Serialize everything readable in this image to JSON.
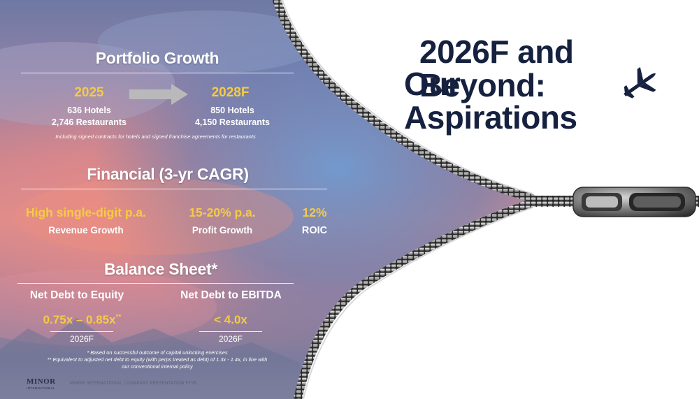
{
  "title": {
    "line1": "2026F and Beyond:",
    "line2": "Our Aspirations",
    "icon": "airplane-icon"
  },
  "portfolio": {
    "heading": "Portfolio Growth",
    "from_year": "2025",
    "from_hotels": "636 Hotels",
    "from_restaurants": "2,746 Restaurants",
    "to_year": "2028F",
    "to_hotels": "850 Hotels",
    "to_restaurants": "4,150 Restaurants",
    "note": "Including signed contracts for hotels and signed franchise agreements for restaurants"
  },
  "financial": {
    "heading": "Financial (3-yr CAGR)",
    "metrics": [
      {
        "value": "High single-digit p.a.",
        "label": "Revenue Growth"
      },
      {
        "value": "15-20% p.a.",
        "label": "Profit Growth"
      },
      {
        "value": "12%",
        "label": "ROIC"
      }
    ]
  },
  "balance": {
    "heading": "Balance Sheet*",
    "items": [
      {
        "label": "Net Debt to Equity",
        "value": "0.75x – 0.85x",
        "sup": "**",
        "year": "2026F"
      },
      {
        "label": "Net Debt to EBITDA",
        "value": "< 4.0x",
        "sup": "",
        "year": "2026F"
      }
    ],
    "footnote1": "* Based on successful outcome of capital unlocking exercises",
    "footnote2": "** Equivalent to adjusted net debt to equity (with perps treated as debt) of 1.3x - 1.4x, in line with",
    "footnote3": "our conventional internal policy"
  },
  "footer": {
    "logo": "MINOR",
    "logo_sub": "INTERNATIONAL",
    "text": "MINOR INTERNATIONAL | COMPANY PRESENTATION FY25"
  },
  "colors": {
    "title": "#16213f",
    "accent_gold": "#f5cb45",
    "sky_top": "#5c78a8",
    "sky_pink": "#e0869a",
    "zipper_metal": "#8a8a8a"
  }
}
